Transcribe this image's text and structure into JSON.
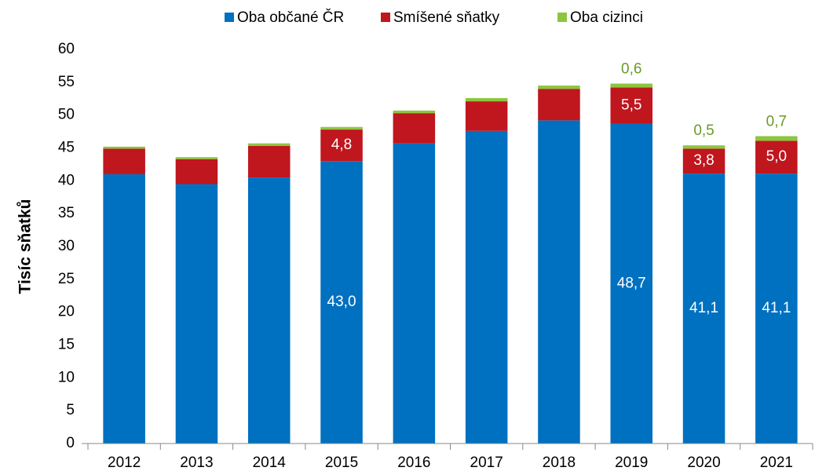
{
  "chart_data": {
    "type": "stacked_bar",
    "y_label": "Tisíc sňatků",
    "categories": [
      "2012",
      "2013",
      "2014",
      "2015",
      "2016",
      "2017",
      "2018",
      "2019",
      "2020",
      "2021"
    ],
    "series": [
      {
        "name": "Oba občané ČR",
        "color": "#0070c0",
        "label_color": "#ffffff",
        "values": [
          41.0,
          39.5,
          40.5,
          43.0,
          45.7,
          47.6,
          49.2,
          48.7,
          41.1,
          41.1
        ],
        "value_labels": [
          null,
          null,
          null,
          "43,0",
          null,
          null,
          null,
          "48,7",
          "41,1",
          "41,1"
        ]
      },
      {
        "name": "Smíšené sňatky",
        "color": "#c0161e",
        "label_color": "#ffffff",
        "values": [
          3.9,
          3.8,
          4.8,
          4.8,
          4.6,
          4.5,
          4.8,
          5.5,
          3.8,
          5.0
        ],
        "value_labels": [
          null,
          null,
          null,
          "4,8",
          null,
          null,
          null,
          "5,5",
          "3,8",
          "5,0"
        ]
      },
      {
        "name": "Oba cizinci",
        "color": "#8cc63f",
        "label_color": "#6a9a2a",
        "values": [
          0.3,
          0.3,
          0.4,
          0.4,
          0.4,
          0.5,
          0.5,
          0.6,
          0.5,
          0.7
        ],
        "value_labels": [
          null,
          null,
          null,
          null,
          null,
          null,
          null,
          "0,6",
          "0,5",
          "0,7"
        ]
      }
    ],
    "ylim": [
      0,
      60
    ],
    "yticks": [
      0,
      5,
      10,
      15,
      20,
      25,
      30,
      35,
      40,
      45,
      50,
      55,
      60
    ],
    "grid": false,
    "legend": "top"
  }
}
